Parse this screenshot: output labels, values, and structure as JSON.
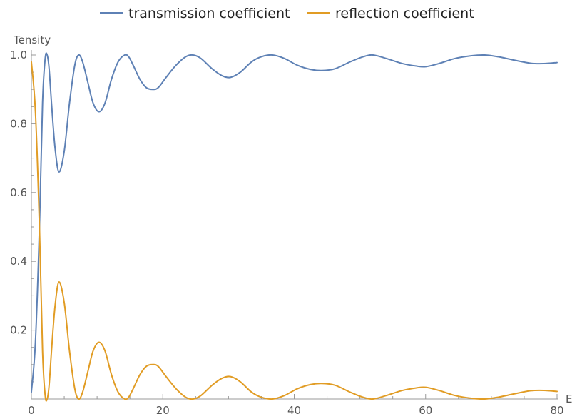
{
  "chart_data": {
    "type": "line",
    "xlabel": "E",
    "ylabel": "Tensity",
    "xlim": [
      0,
      80
    ],
    "ylim": [
      0,
      1.0
    ],
    "x_ticks": [
      "0",
      "20",
      "40",
      "60",
      "80"
    ],
    "y_ticks": [
      "0.2",
      "0.4",
      "0.6",
      "0.8",
      "1.0"
    ],
    "grid": false,
    "legend": "top-center",
    "series": [
      {
        "name": "transmission coefficient",
        "color": "#5e81b5",
        "x": [
          0,
          0.6,
          1.2,
          1.7,
          2.1,
          2.4,
          2.7,
          3.1,
          3.6,
          4.2,
          5.0,
          5.8,
          6.6,
          7.2,
          7.8,
          8.6,
          9.4,
          10.3,
          11.2,
          12.2,
          13.2,
          14.2,
          14.8,
          15.5,
          16.5,
          17.5,
          18.5,
          19.3,
          20.5,
          22.0,
          23.5,
          24.6,
          25.8,
          27.5,
          29.0,
          30.3,
          31.8,
          33.5,
          35.0,
          36.7,
          38.5,
          40.5,
          42.5,
          44.2,
          46.2,
          48.5,
          50.5,
          52.0,
          54.0,
          56.5,
          58.5,
          60.0,
          62.0,
          64.5,
          67.0,
          69.0,
          71.0,
          73.5,
          76.0,
          78.0,
          80.0
        ],
        "y": [
          0.02,
          0.16,
          0.48,
          0.86,
          0.99,
          1.0,
          0.96,
          0.85,
          0.73,
          0.66,
          0.72,
          0.86,
          0.97,
          1.0,
          0.98,
          0.92,
          0.86,
          0.835,
          0.86,
          0.93,
          0.98,
          1.0,
          0.995,
          0.97,
          0.93,
          0.905,
          0.9,
          0.905,
          0.935,
          0.97,
          0.995,
          1.0,
          0.99,
          0.96,
          0.94,
          0.935,
          0.95,
          0.98,
          0.995,
          1.0,
          0.99,
          0.97,
          0.958,
          0.955,
          0.96,
          0.98,
          0.995,
          1.0,
          0.99,
          0.975,
          0.968,
          0.966,
          0.975,
          0.99,
          0.998,
          1.0,
          0.995,
          0.985,
          0.976,
          0.975,
          0.978
        ]
      },
      {
        "name": "reflection coefficient",
        "color": "#e19c24",
        "x": [
          0,
          0.6,
          1.2,
          1.7,
          2.1,
          2.4,
          2.7,
          3.1,
          3.6,
          4.2,
          5.0,
          5.8,
          6.6,
          7.2,
          7.8,
          8.6,
          9.4,
          10.3,
          11.2,
          12.2,
          13.2,
          14.2,
          14.8,
          15.5,
          16.5,
          17.5,
          18.5,
          19.3,
          20.5,
          22.0,
          23.5,
          24.6,
          25.8,
          27.5,
          29.0,
          30.3,
          31.8,
          33.5,
          35.0,
          36.7,
          38.5,
          40.5,
          42.5,
          44.2,
          46.2,
          48.5,
          50.5,
          52.0,
          54.0,
          56.5,
          58.5,
          60.0,
          62.0,
          64.5,
          67.0,
          69.0,
          71.0,
          73.5,
          76.0,
          78.0,
          80.0
        ],
        "y": [
          0.98,
          0.84,
          0.52,
          0.14,
          0.01,
          0.0,
          0.04,
          0.15,
          0.27,
          0.34,
          0.28,
          0.14,
          0.03,
          0.0,
          0.02,
          0.08,
          0.14,
          0.165,
          0.14,
          0.07,
          0.02,
          0.0,
          0.005,
          0.03,
          0.07,
          0.095,
          0.1,
          0.095,
          0.065,
          0.03,
          0.005,
          0.0,
          0.01,
          0.04,
          0.06,
          0.065,
          0.05,
          0.02,
          0.005,
          0.0,
          0.01,
          0.03,
          0.042,
          0.045,
          0.04,
          0.02,
          0.005,
          0.0,
          0.01,
          0.025,
          0.032,
          0.034,
          0.025,
          0.01,
          0.002,
          0.0,
          0.005,
          0.015,
          0.024,
          0.025,
          0.022
        ]
      }
    ]
  }
}
